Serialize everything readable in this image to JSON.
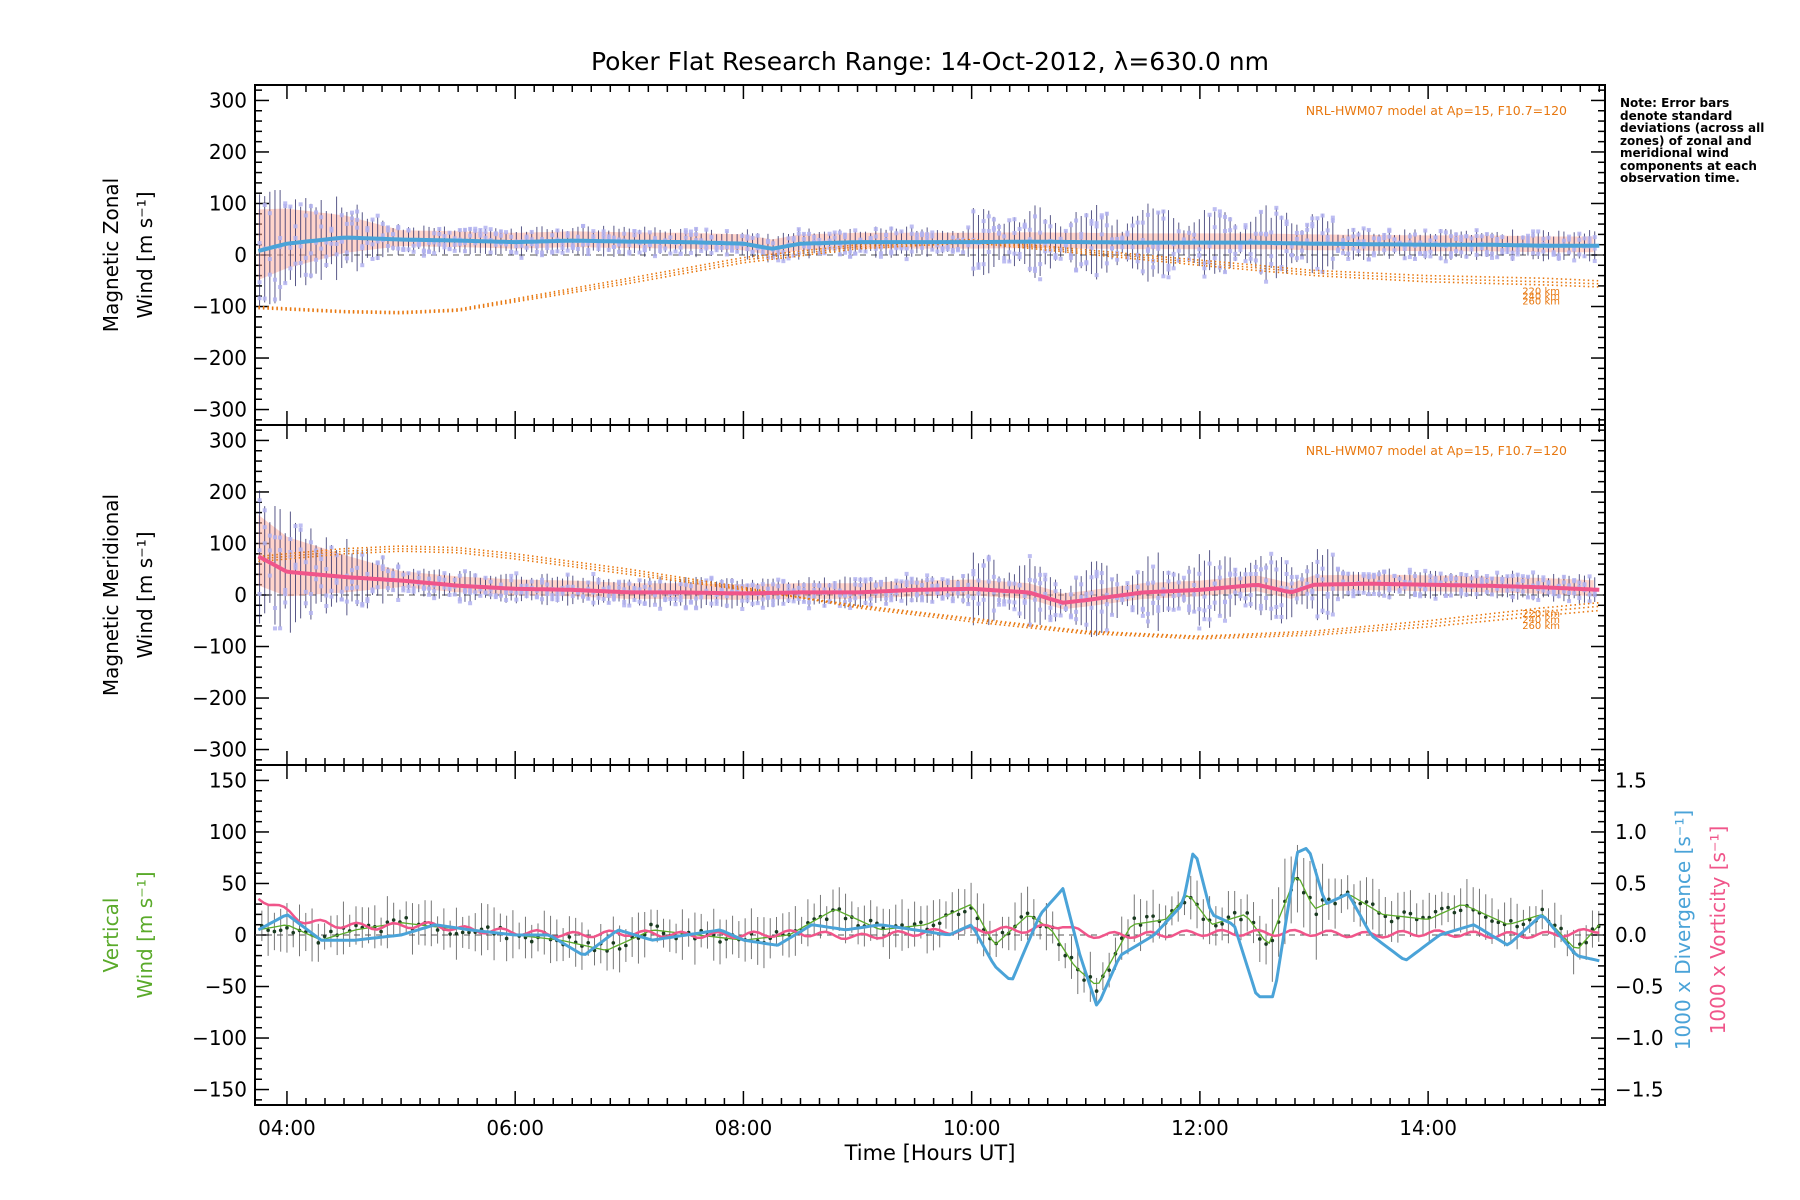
{
  "title": "Poker Flat Research Range: 14-Oct-2012, λ=630.0 nm",
  "note": "Note: Error bars denote standard deviations (across all zones) of zonal and meridional wind components at each observation time.",
  "colors": {
    "axis": "#000000",
    "zonal_mean": "#4aa3d8",
    "meridional_mean": "#f0558a",
    "data_points": "#b3b3f0",
    "error_bars": "#202060",
    "model": "#e87810",
    "spread_fill": "#ffb0a0",
    "vertical": "#5aaa2a",
    "divergence": "#4aa3d8",
    "vorticity": "#f0558a"
  },
  "chart_data": [
    {
      "type": "line",
      "panel": "zonal",
      "ylabel_lines": [
        "Magnetic Zonal",
        "Wind [m s⁻¹]"
      ],
      "ylim": [
        -330,
        330
      ],
      "yticks": [
        -300,
        -200,
        -100,
        0,
        100,
        200,
        300
      ],
      "model_label": "NRL-HWM07 model at Ap=15, F10.7=120",
      "model_altitudes": [
        "220 km",
        "240 km",
        "260 km"
      ],
      "series": [
        {
          "role": "mean",
          "x": [
            3.75,
            4.0,
            4.5,
            5.0,
            5.5,
            6.0,
            6.5,
            7.0,
            7.5,
            8.0,
            8.25,
            8.5,
            9.0,
            9.5,
            10.0,
            10.5,
            11.0,
            11.5,
            12.0,
            12.5,
            13.0,
            13.5,
            14.0,
            14.5,
            15.0,
            15.5
          ],
          "y": [
            8,
            22,
            34,
            30,
            28,
            25,
            28,
            26,
            25,
            22,
            12,
            22,
            25,
            25,
            25,
            26,
            25,
            24,
            24,
            24,
            22,
            21,
            20,
            20,
            18,
            18
          ]
        },
        {
          "role": "model 220 km",
          "x": [
            3.75,
            4.5,
            5.0,
            5.5,
            6.0,
            7.0,
            8.0,
            9.0,
            10.0,
            11.0,
            12.0,
            13.0,
            14.0,
            15.0,
            15.5
          ],
          "y": [
            -100,
            -108,
            -110,
            -105,
            -85,
            -45,
            -5,
            20,
            30,
            10,
            -10,
            -30,
            -40,
            -45,
            -50
          ]
        },
        {
          "role": "model 240 km",
          "x": [
            3.75,
            4.5,
            5.0,
            5.5,
            6.0,
            7.0,
            8.0,
            9.0,
            10.0,
            11.0,
            12.0,
            13.0,
            14.0,
            15.0,
            15.5
          ],
          "y": [
            -102,
            -110,
            -112,
            -107,
            -88,
            -50,
            -10,
            16,
            27,
            6,
            -15,
            -35,
            -46,
            -52,
            -56
          ]
        },
        {
          "role": "model 260 km",
          "x": [
            3.75,
            4.5,
            5.0,
            5.5,
            6.0,
            7.0,
            8.0,
            9.0,
            10.0,
            11.0,
            12.0,
            13.0,
            14.0,
            15.0,
            15.5
          ],
          "y": [
            -104,
            -112,
            -114,
            -109,
            -91,
            -55,
            -15,
            12,
            24,
            2,
            -20,
            -40,
            -52,
            -58,
            -62
          ]
        }
      ]
    },
    {
      "type": "line",
      "panel": "meridional",
      "ylabel_lines": [
        "Magnetic Meridional",
        "Wind [m s⁻¹]"
      ],
      "ylim": [
        -330,
        330
      ],
      "yticks": [
        -300,
        -200,
        -100,
        0,
        100,
        200,
        300
      ],
      "model_label": "NRL-HWM07 model at Ap=15, F10.7=120",
      "model_altitudes": [
        "220 km",
        "240 km",
        "260 km"
      ],
      "series": [
        {
          "role": "mean",
          "x": [
            3.75,
            4.0,
            4.5,
            5.0,
            5.5,
            6.0,
            6.5,
            7.0,
            7.5,
            8.0,
            8.5,
            9.0,
            9.5,
            10.0,
            10.5,
            10.8,
            11.0,
            11.5,
            12.0,
            12.5,
            12.8,
            13.0,
            13.5,
            14.0,
            14.5,
            15.0,
            15.5
          ],
          "y": [
            75,
            45,
            35,
            28,
            18,
            12,
            10,
            5,
            5,
            3,
            5,
            5,
            10,
            12,
            5,
            -15,
            -10,
            5,
            10,
            20,
            5,
            20,
            22,
            20,
            18,
            15,
            10
          ]
        },
        {
          "role": "model 220 km",
          "x": [
            3.75,
            4.5,
            5.0,
            5.5,
            6.0,
            7.0,
            8.0,
            9.0,
            10.0,
            11.0,
            12.0,
            13.0,
            14.0,
            15.0,
            15.5
          ],
          "y": [
            65,
            80,
            85,
            82,
            70,
            40,
            10,
            -20,
            -45,
            -70,
            -80,
            -70,
            -50,
            -25,
            -15
          ]
        },
        {
          "role": "model 240 km",
          "x": [
            3.75,
            4.5,
            5.0,
            5.5,
            6.0,
            7.0,
            8.0,
            9.0,
            10.0,
            11.0,
            12.0,
            13.0,
            14.0,
            15.0,
            15.5
          ],
          "y": [
            70,
            85,
            90,
            87,
            75,
            45,
            12,
            -22,
            -48,
            -72,
            -82,
            -74,
            -56,
            -32,
            -22
          ]
        },
        {
          "role": "model 260 km",
          "x": [
            3.75,
            4.5,
            5.0,
            5.5,
            6.0,
            7.0,
            8.0,
            9.0,
            10.0,
            11.0,
            12.0,
            13.0,
            14.0,
            15.0,
            15.5
          ],
          "y": [
            75,
            90,
            95,
            92,
            80,
            50,
            15,
            -25,
            -52,
            -75,
            -85,
            -78,
            -62,
            -40,
            -30
          ]
        }
      ]
    },
    {
      "type": "line",
      "panel": "vertical",
      "ylabel_lines": [
        "Vertical",
        "Wind [m s⁻¹]"
      ],
      "ylim": [
        -165,
        165
      ],
      "yticks": [
        -150,
        -100,
        -50,
        0,
        50,
        100,
        150
      ],
      "y2label_lines": [
        "1000 x Divergence [s⁻¹]",
        "1000 x Vorticity [s⁻¹]"
      ],
      "y2lim": [
        -1.65,
        1.65
      ],
      "y2ticks": [
        -1.5,
        -1.0,
        -0.5,
        0.0,
        0.5,
        1.0,
        1.5
      ],
      "xlabel": "Time [Hours UT]",
      "xlim": [
        3.72,
        15.55
      ],
      "xticks": [
        4,
        6,
        8,
        10,
        12,
        14
      ],
      "xtick_labels": [
        "04:00",
        "06:00",
        "08:00",
        "10:00",
        "12:00",
        "14:00"
      ],
      "series": [
        {
          "name": "Vertical",
          "role": "vertical wind",
          "x": [
            3.75,
            4.0,
            4.3,
            4.6,
            5.0,
            5.3,
            5.6,
            6.0,
            6.4,
            6.8,
            7.2,
            7.6,
            8.0,
            8.4,
            8.8,
            9.2,
            9.6,
            10.0,
            10.2,
            10.5,
            10.7,
            10.9,
            11.1,
            11.4,
            11.7,
            11.9,
            12.1,
            12.4,
            12.6,
            12.85,
            13.0,
            13.3,
            13.6,
            14.0,
            14.3,
            14.7,
            15.0,
            15.3,
            15.5
          ],
          "y": [
            5,
            10,
            -5,
            5,
            12,
            8,
            5,
            0,
            -5,
            -15,
            5,
            0,
            -5,
            0,
            25,
            5,
            10,
            30,
            -10,
            20,
            5,
            -30,
            -50,
            10,
            15,
            40,
            10,
            20,
            -10,
            60,
            25,
            40,
            20,
            15,
            30,
            10,
            20,
            -15,
            10
          ]
        },
        {
          "name": "Divergence",
          "role": "1000 x divergence (right axis)",
          "x": [
            3.75,
            4.0,
            4.3,
            4.6,
            5.0,
            5.3,
            5.6,
            6.0,
            6.3,
            6.6,
            6.9,
            7.2,
            7.5,
            7.8,
            8.0,
            8.3,
            8.6,
            8.9,
            9.2,
            9.5,
            9.8,
            10.0,
            10.2,
            10.35,
            10.6,
            10.8,
            10.95,
            11.1,
            11.3,
            11.6,
            11.85,
            11.95,
            12.1,
            12.3,
            12.5,
            12.65,
            12.85,
            12.95,
            13.1,
            13.3,
            13.5,
            13.8,
            14.1,
            14.4,
            14.7,
            15.0,
            15.3,
            15.5
          ],
          "y": [
            0.05,
            0.2,
            -0.05,
            -0.05,
            0.0,
            0.1,
            0.05,
            0.0,
            0.0,
            -0.2,
            0.05,
            -0.05,
            0.0,
            0.05,
            -0.05,
            -0.1,
            0.1,
            0.05,
            0.1,
            0.05,
            0.0,
            0.1,
            -0.3,
            -0.45,
            0.2,
            0.45,
            -0.2,
            -0.7,
            -0.2,
            0.0,
            0.3,
            0.85,
            0.2,
            0.1,
            -0.6,
            -0.6,
            0.8,
            0.85,
            0.3,
            0.4,
            0.0,
            -0.25,
            0.0,
            0.1,
            -0.1,
            0.2,
            -0.2,
            -0.25
          ]
        },
        {
          "name": "Vorticity",
          "role": "1000 x vorticity (right axis)",
          "x": [
            3.75,
            3.9,
            4.1,
            4.4,
            4.8,
            5.2,
            5.6,
            6.0,
            6.5,
            7.0,
            7.5,
            8.0,
            8.5,
            9.0,
            9.5,
            10.0,
            10.5,
            10.8,
            11.0,
            11.5,
            12.0,
            12.5,
            13.0,
            13.5,
            14.0,
            14.5,
            15.0,
            15.3,
            15.5
          ],
          "y": [
            0.35,
            0.3,
            0.15,
            0.1,
            0.08,
            0.1,
            0.05,
            0.03,
            0.0,
            0.02,
            0.0,
            0.0,
            0.02,
            -0.02,
            0.02,
            0.05,
            0.05,
            0.1,
            0.0,
            0.0,
            0.02,
            0.02,
            0.02,
            0.0,
            0.02,
            0.0,
            0.0,
            0.02,
            0.05
          ]
        }
      ]
    }
  ]
}
